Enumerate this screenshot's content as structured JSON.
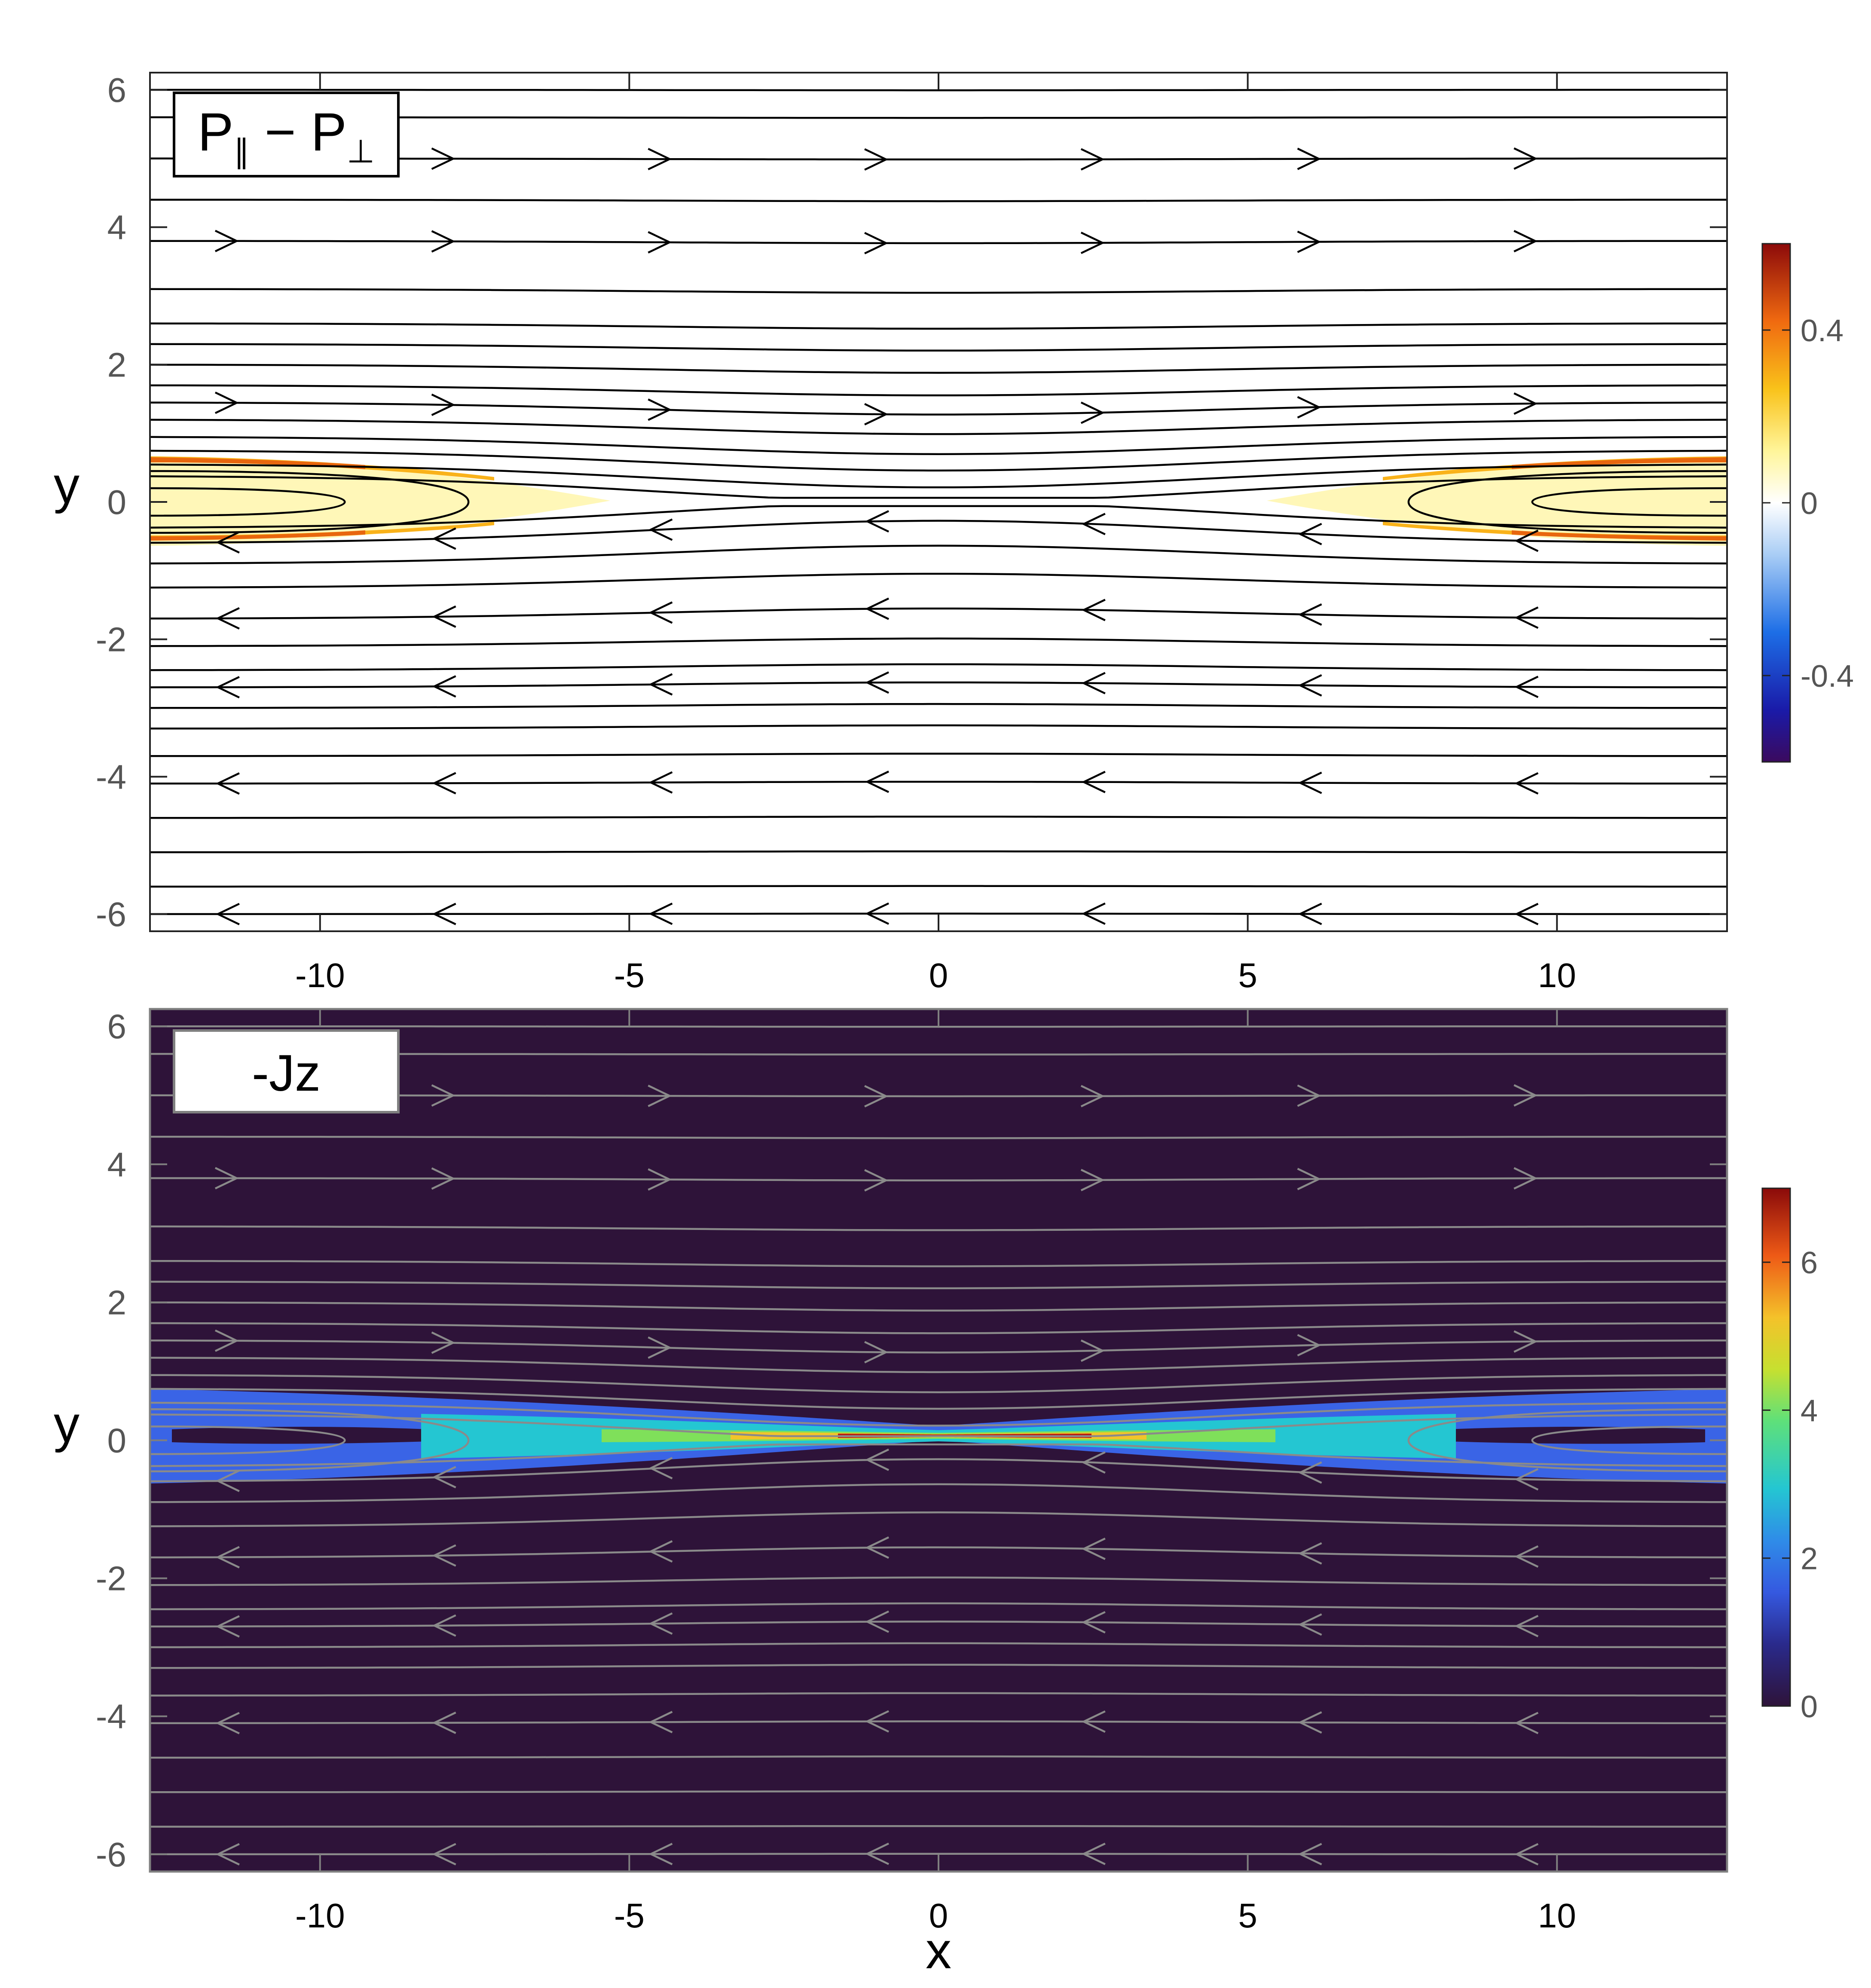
{
  "figure": {
    "xlabel": "x",
    "xlim": [
      -12.75,
      12.75
    ],
    "ylim": [
      -6.25,
      6.25
    ],
    "xticks": [
      -10,
      -5,
      0,
      5,
      10
    ],
    "yticks": [
      -6,
      -4,
      -2,
      0,
      2,
      4,
      6
    ]
  },
  "chart_data": [
    {
      "type": "heatmap",
      "title": "P∥ − P⊥",
      "title_main_1": "P",
      "title_sub_1": "∥",
      "title_mid": " − ",
      "title_main_2": "P",
      "title_sub_2": "⊥",
      "xlabel": "",
      "ylabel": "y",
      "xlim": [
        -12.75,
        12.75
      ],
      "ylim": [
        -6.25,
        6.25
      ],
      "background_color": "#ffffff",
      "streamline_color": "#000000",
      "colorbar": {
        "range": [
          -0.6,
          0.6
        ],
        "ticks": [
          -0.4,
          0,
          0.4
        ],
        "tick_labels": [
          "-0.4",
          "0",
          "0.4"
        ],
        "colormap": "jet-like diverging (purple-blue-white-yellow-red)"
      },
      "field_features": [
        {
          "region": "left flank lobe",
          "x_range": [
            -12.75,
            -6
          ],
          "y_center": 0,
          "max_value": 0.4
        },
        {
          "region": "right flank lobe",
          "x_range": [
            6,
            12.75
          ],
          "y_center": 0,
          "max_value": 0.4
        },
        {
          "region": "central sheet",
          "x_range": [
            -6,
            6
          ],
          "y_center": 0,
          "value": 0
        }
      ],
      "streamlines": "magnetic field lines; rightward arrows for y > 0, leftward arrows for y < 0; closed loops near (±11, 0)"
    },
    {
      "type": "heatmap",
      "title": "-Jz",
      "xlabel": "x",
      "ylabel": "y",
      "xlim": [
        -12.75,
        12.75
      ],
      "ylim": [
        -6.25,
        6.25
      ],
      "background_color": "#2e1339",
      "streamline_color": "#8a8a8a",
      "colorbar": {
        "range": [
          0,
          7
        ],
        "ticks": [
          0,
          2,
          4,
          6
        ],
        "tick_labels": [
          "0",
          "2",
          "4",
          "6"
        ],
        "colormap": "jet-like (dark purple-blue-cyan-green-yellow-red)"
      },
      "field_features": [
        {
          "region": "outer current sheet",
          "x_range": [
            -12.75,
            12.75
          ],
          "y_center": 0,
          "value": 1
        },
        {
          "region": "inner current sheet",
          "x_range": [
            -7,
            7
          ],
          "y_center": 0,
          "value": 2
        },
        {
          "region": "X-line peak",
          "x_range": [
            -2,
            2.5
          ],
          "y_center": 0,
          "max_value": 7
        }
      ],
      "streamlines": "magnetic field lines; rightward arrows for y > 0, leftward arrows for y < 0; closed loops near (±11, 0)"
    }
  ]
}
